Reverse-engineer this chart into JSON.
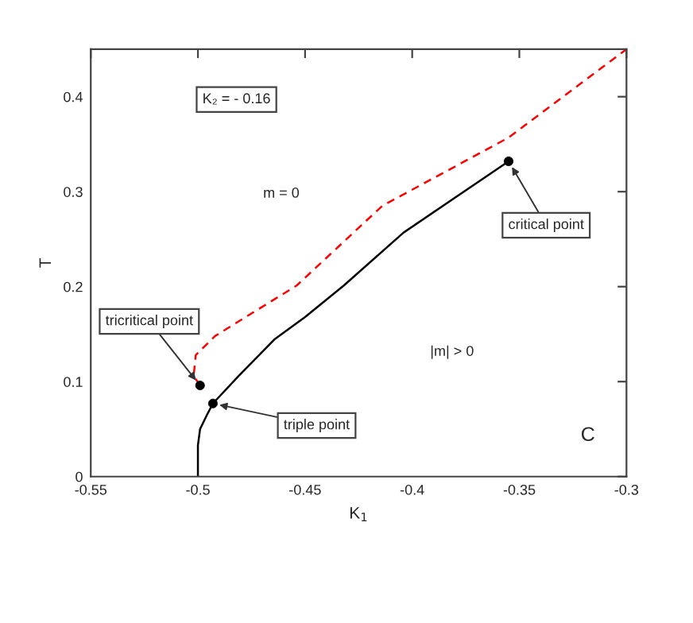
{
  "chart_data": {
    "type": "line",
    "xlabel": "K$_{1}$",
    "ylabel": "T",
    "xlim": [
      -0.55,
      -0.3
    ],
    "ylim": [
      0,
      0.45
    ],
    "xticks": [
      -0.55,
      -0.5,
      -0.45,
      -0.4,
      -0.35,
      -0.3
    ],
    "yticks": [
      0,
      0.1,
      0.2,
      0.3,
      0.4
    ],
    "grid": false,
    "legend": false,
    "series": [
      {
        "color": "#000000",
        "line_style": "solid",
        "x": [
          -0.5,
          -0.5,
          -0.499,
          -0.496,
          -0.493,
          -0.481,
          -0.464,
          -0.45,
          -0.432,
          -0.404,
          -0.355
        ],
        "values": [
          0,
          0.033,
          0.05,
          0.064,
          0.077,
          0.106,
          0.145,
          0.168,
          0.201,
          0.257,
          0.332
        ]
      },
      {
        "color": "#ff0000",
        "line_style": "dashed",
        "x": [
          -0.499,
          -0.502,
          -0.501,
          -0.492,
          -0.477,
          -0.454,
          -0.414,
          -0.355,
          -0.3
        ],
        "values": [
          0.096,
          0.106,
          0.128,
          0.148,
          0.169,
          0.201,
          0.285,
          0.357,
          0.45
        ]
      },
      {
        "type": "scatter",
        "color": "#000000",
        "marker": "circle",
        "x": [
          -0.499,
          -0.493,
          -0.355
        ],
        "values": [
          0.096,
          0.077,
          0.332
        ]
      }
    ],
    "annotations": [
      {
        "text": "tricritical point",
        "x": -0.499,
        "y": 0.096
      },
      {
        "text": "triple point",
        "x": -0.493,
        "y": 0.077
      },
      {
        "text": "critical point",
        "x": -0.355,
        "y": 0.332
      },
      "K₂ = - 0.16",
      "m = 0",
      "|m| > 0",
      "C"
    ]
  }
}
